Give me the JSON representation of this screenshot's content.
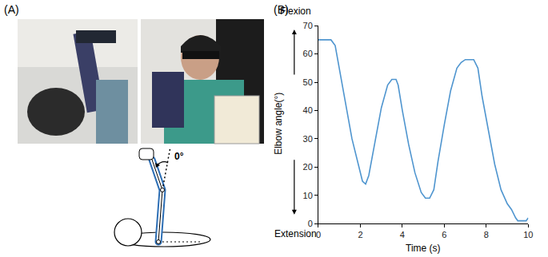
{
  "panel_labels": [
    "(A)",
    "(B)"
  ],
  "diagram": {
    "angle_label": "0°"
  },
  "chart_data": {
    "type": "line",
    "x_label": "Time (s)",
    "y_label": "Elbow angle(°)",
    "annotations": [
      "Flexion",
      "Extension"
    ],
    "x": [
      0,
      0.3,
      0.6,
      0.8,
      1.0,
      1.3,
      1.6,
      1.9,
      2.1,
      2.25,
      2.4,
      2.7,
      3.0,
      3.3,
      3.5,
      3.7,
      3.8,
      4.0,
      4.3,
      4.6,
      4.9,
      5.1,
      5.3,
      5.5,
      5.7,
      6.0,
      6.3,
      6.6,
      6.8,
      7.0,
      7.4,
      7.6,
      7.8,
      8.1,
      8.4,
      8.7,
      9.0,
      9.2,
      9.4,
      9.5,
      9.7,
      9.9,
      10
    ],
    "series": [
      {
        "color": "#4f95cf",
        "values": [
          65,
          65,
          65,
          63,
          55,
          42,
          30,
          21,
          15,
          14,
          17,
          29,
          41,
          49,
          51,
          51,
          49,
          40,
          28,
          18,
          11,
          9,
          9,
          12,
          22,
          35,
          47,
          55,
          57,
          58,
          58,
          55,
          45,
          33,
          21,
          12,
          7,
          5,
          2,
          1,
          1,
          1,
          2
        ]
      }
    ],
    "xlim": [
      0,
      10
    ],
    "xticks": [
      0,
      2,
      4,
      6,
      8,
      10
    ],
    "ylim": [
      0,
      70
    ],
    "yticks": [
      0,
      10,
      20,
      30,
      40,
      50,
      60,
      70
    ],
    "grid": false
  }
}
